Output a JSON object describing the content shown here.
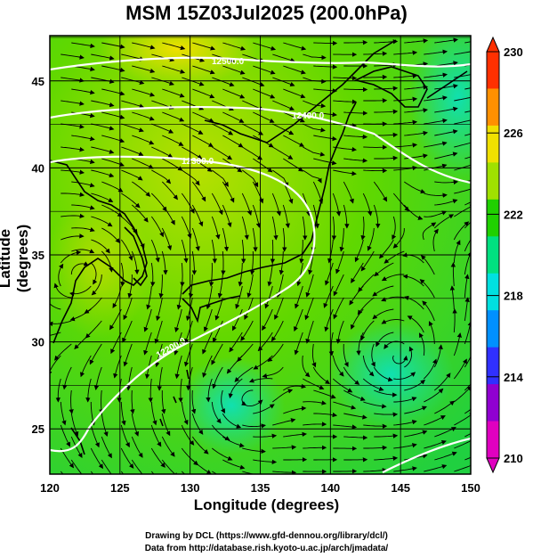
{
  "title": "MSM 15Z03Jul2025 (200.0hPa)",
  "xaxis": {
    "label": "Longitude (degrees)",
    "ticks": [
      "120",
      "125",
      "130",
      "135",
      "140",
      "145",
      "150"
    ],
    "range": [
      120,
      150
    ]
  },
  "yaxis": {
    "label": "Latitude  (degrees)",
    "ticks": [
      "25",
      "30",
      "35",
      "40",
      "45"
    ],
    "range": [
      22.4,
      47.6
    ]
  },
  "colorbar": {
    "ticks": [
      "230",
      "226",
      "222",
      "218",
      "214",
      "210"
    ],
    "range": [
      210,
      230
    ],
    "colors": [
      "#e000c0",
      "#9000d0",
      "#3030ff",
      "#0090ff",
      "#00e0e0",
      "#00e080",
      "#20d000",
      "#a0e000",
      "#f0e000",
      "#ff9000",
      "#ff3000"
    ]
  },
  "contours": [
    {
      "label": "12500.0",
      "value": 12500
    },
    {
      "label": "12400.0",
      "value": 12400
    },
    {
      "label": "12300.0",
      "value": 12300
    },
    {
      "label": "12200.0",
      "value": 12200
    }
  ],
  "footer": {
    "line1": "Drawing by DCL (https://www.gfd-dennou.org/library/dcl/)",
    "line2": "Data from http://database.rish.kyoto-u.ac.jp/arch/jmadata/"
  }
}
